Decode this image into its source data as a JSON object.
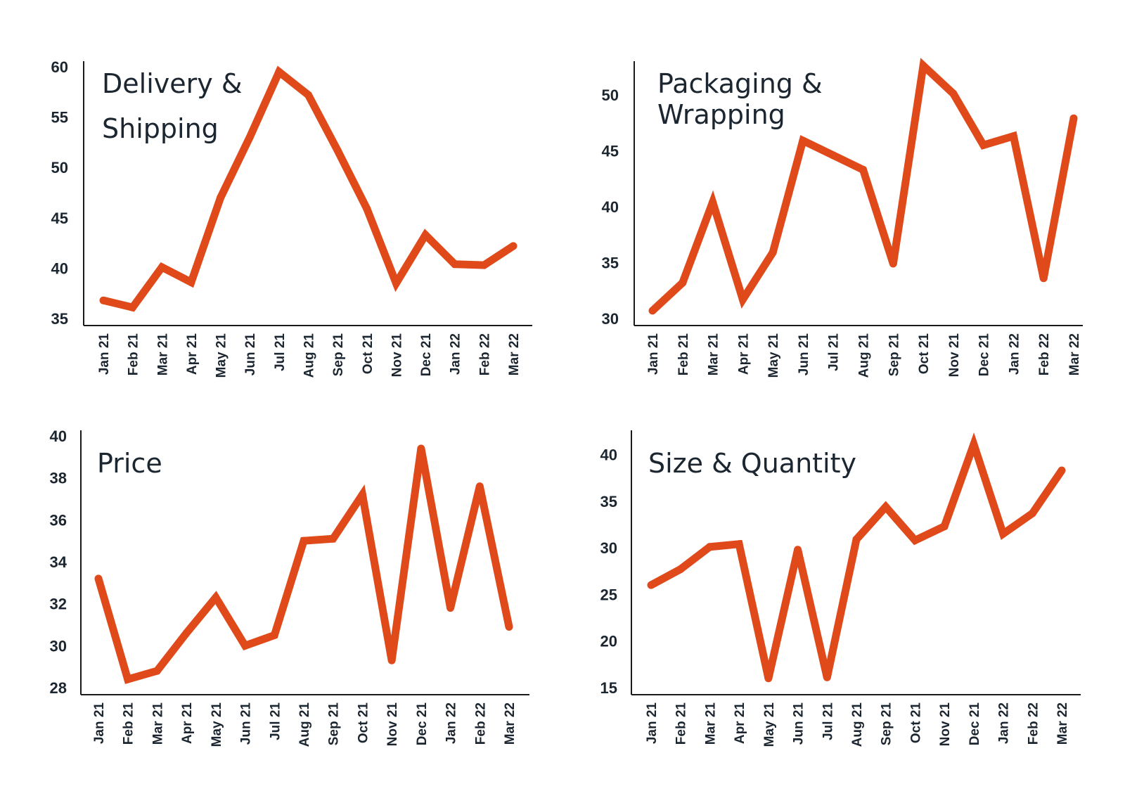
{
  "colors": {
    "line": "#e04a1b",
    "text": "#1c2630",
    "axis": "#1a1a1a"
  },
  "chart_data": [
    {
      "type": "line",
      "title_lines": [
        "Delivery &",
        "Shipping"
      ],
      "categories": [
        "Jan 21",
        "Feb 21",
        "Mar 21",
        "Apr 21",
        "May 21",
        "Jun 21",
        "Jul 21",
        "Aug 21",
        "Sep 21",
        "Oct 21",
        "Nov 21",
        "Dec 21",
        "Jan 22",
        "Feb 22",
        "Mar 22"
      ],
      "values": [
        36.8,
        36.1,
        40.1,
        38.6,
        47.0,
        53.0,
        59.5,
        57.2,
        51.7,
        45.9,
        38.5,
        43.3,
        40.4,
        40.3,
        42.2
      ],
      "yticks": [
        35,
        40,
        45,
        50,
        55,
        60
      ],
      "ylim": [
        35,
        60
      ],
      "grid": false
    },
    {
      "type": "line",
      "title_lines": [
        "Packaging &",
        "Wrapping"
      ],
      "categories": [
        "Jan 21",
        "Feb 21",
        "Mar 21",
        "Apr 21",
        "May 21",
        "Jun 21",
        "Jul 21",
        "Aug 21",
        "Sep 21",
        "Oct 21",
        "Nov 21",
        "Dec 21",
        "Jan 22",
        "Feb 22",
        "Mar 22"
      ],
      "values": [
        30.7,
        33.2,
        40.4,
        31.7,
        35.9,
        45.9,
        44.6,
        43.3,
        34.9,
        52.6,
        50.1,
        45.5,
        46.3,
        33.6,
        47.9
      ],
      "yticks": [
        30,
        35,
        40,
        45,
        50
      ],
      "ylim": [
        30,
        52.5
      ],
      "grid": false
    },
    {
      "type": "line",
      "title_lines": [
        "Price"
      ],
      "categories": [
        "Jan 21",
        "Feb 21",
        "Mar 21",
        "Apr 21",
        "May 21",
        "Jun 21",
        "Jul 21",
        "Aug 21",
        "Sep 21",
        "Oct 21",
        "Nov 21",
        "Dec 21",
        "Jan 22",
        "Feb 22",
        "Mar 22"
      ],
      "values": [
        33.2,
        28.4,
        28.8,
        30.6,
        32.3,
        30.0,
        30.5,
        35.0,
        35.1,
        37.2,
        29.3,
        39.4,
        31.8,
        37.6,
        30.9
      ],
      "yticks": [
        28,
        30,
        32,
        34,
        36,
        38,
        40
      ],
      "ylim": [
        28,
        40
      ],
      "grid": false
    },
    {
      "type": "line",
      "title_lines": [
        "Size & Quantity"
      ],
      "categories": [
        "Jan 21",
        "Feb 21",
        "Mar 21",
        "Apr 21",
        "May 21",
        "Jun 21",
        "Jul 21",
        "Aug 21",
        "Sep 21",
        "Oct 21",
        "Nov 21",
        "Dec 21",
        "Jan 22",
        "Feb 22",
        "Mar 22"
      ],
      "values": [
        26.0,
        27.7,
        30.1,
        30.4,
        16.0,
        29.8,
        16.1,
        30.9,
        34.4,
        30.8,
        32.3,
        41.1,
        31.5,
        33.7,
        38.3
      ],
      "yticks": [
        15,
        20,
        25,
        30,
        35,
        40
      ],
      "ylim": [
        15,
        42
      ],
      "grid": false
    }
  ]
}
